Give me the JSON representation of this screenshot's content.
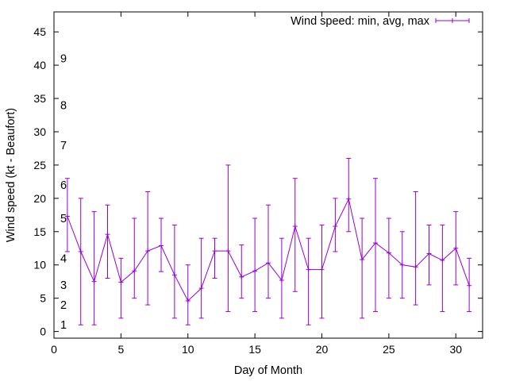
{
  "chart_data": {
    "type": "line",
    "xlabel": "Day of Month",
    "ylabel": "Wind speed (kt - Beaufort)",
    "xlim": [
      0,
      32
    ],
    "ylim": [
      -1,
      48
    ],
    "xticks": [
      0,
      5,
      10,
      15,
      20,
      25,
      30
    ],
    "yticks": [
      0,
      5,
      10,
      15,
      20,
      25,
      30,
      35,
      40,
      45
    ],
    "grid": false,
    "legend_position": "top-right",
    "series": [
      {
        "name": "Wind speed: min, avg, max",
        "color": "#9400d3",
        "style": "lines with y-error bars",
        "x": [
          1,
          2,
          3,
          4,
          5,
          6,
          7,
          8,
          9,
          10,
          11,
          12,
          13,
          14,
          15,
          16,
          17,
          18,
          19,
          20,
          21,
          22,
          23,
          24,
          25,
          26,
          27,
          28,
          29,
          30,
          31
        ],
        "avg": [
          17.3,
          12,
          7.5,
          14.6,
          7.4,
          9.1,
          12.1,
          12.9,
          8.5,
          4.6,
          6.5,
          12.1,
          12.1,
          8.2,
          9.1,
          10.3,
          7.7,
          15.8,
          9.3,
          9.3,
          15.8,
          19.9,
          10.8,
          13.3,
          11.8,
          10,
          9.7,
          11.7,
          10.7,
          12.5,
          6.9
        ],
        "min": [
          12,
          1,
          1,
          8,
          2,
          5,
          4,
          9,
          2,
          1,
          2,
          8,
          3,
          5,
          3,
          5,
          2,
          6,
          1,
          2,
          12,
          15,
          2,
          3,
          5,
          5,
          4,
          7,
          3,
          7,
          3
        ],
        "max": [
          23,
          20,
          18,
          19,
          11,
          17,
          21,
          17,
          16,
          10,
          14,
          14,
          25,
          13,
          17,
          19,
          14,
          23,
          14,
          16,
          20,
          26,
          17,
          23,
          17,
          15,
          21,
          16,
          16,
          18,
          11
        ]
      }
    ],
    "beaufort_labels": [
      {
        "label": "1",
        "value": 1
      },
      {
        "label": "2",
        "value": 4
      },
      {
        "label": "3",
        "value": 7
      },
      {
        "label": "4",
        "value": 11
      },
      {
        "label": "5",
        "value": 17
      },
      {
        "label": "6",
        "value": 22
      },
      {
        "label": "7",
        "value": 28
      },
      {
        "label": "8",
        "value": 34
      },
      {
        "label": "9",
        "value": 41
      }
    ]
  }
}
